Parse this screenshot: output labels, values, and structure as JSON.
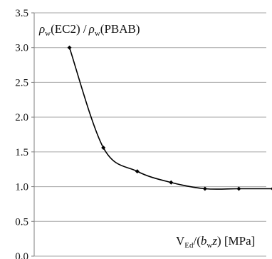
{
  "chart_data": {
    "type": "line",
    "title": "",
    "ylabel": {
      "rho_1": "ρ",
      "sub_1": "w",
      "text_1": "(EC2) /",
      "rho_2": "ρ",
      "sub_2": "w",
      "text_2": "(PBAB)"
    },
    "xlabel": {
      "v": "V",
      "sub_ed": "Ed",
      "open": "/(",
      "b": "b",
      "sub_w": "w",
      "z": "z",
      "close": ") [MPa]"
    },
    "ylim": [
      0,
      3.5
    ],
    "xlim": [
      0,
      7
    ],
    "yticks": [
      "0.0",
      "0.5",
      "1.0",
      "1.5",
      "2.0",
      "2.5",
      "3.0",
      "3.5"
    ],
    "ytick_values": [
      0,
      0.5,
      1.0,
      1.5,
      2.0,
      2.5,
      3.0,
      3.5
    ],
    "grid": true,
    "series": [
      {
        "x": [
          1,
          2,
          3,
          4,
          5,
          6,
          7
        ],
        "values": [
          3.0,
          1.56,
          1.22,
          1.06,
          0.97,
          0.97,
          0.97
        ]
      }
    ],
    "colors": {
      "line": "#000000",
      "grid": "#a6a6a6",
      "axis": "#7f7f7f"
    }
  }
}
